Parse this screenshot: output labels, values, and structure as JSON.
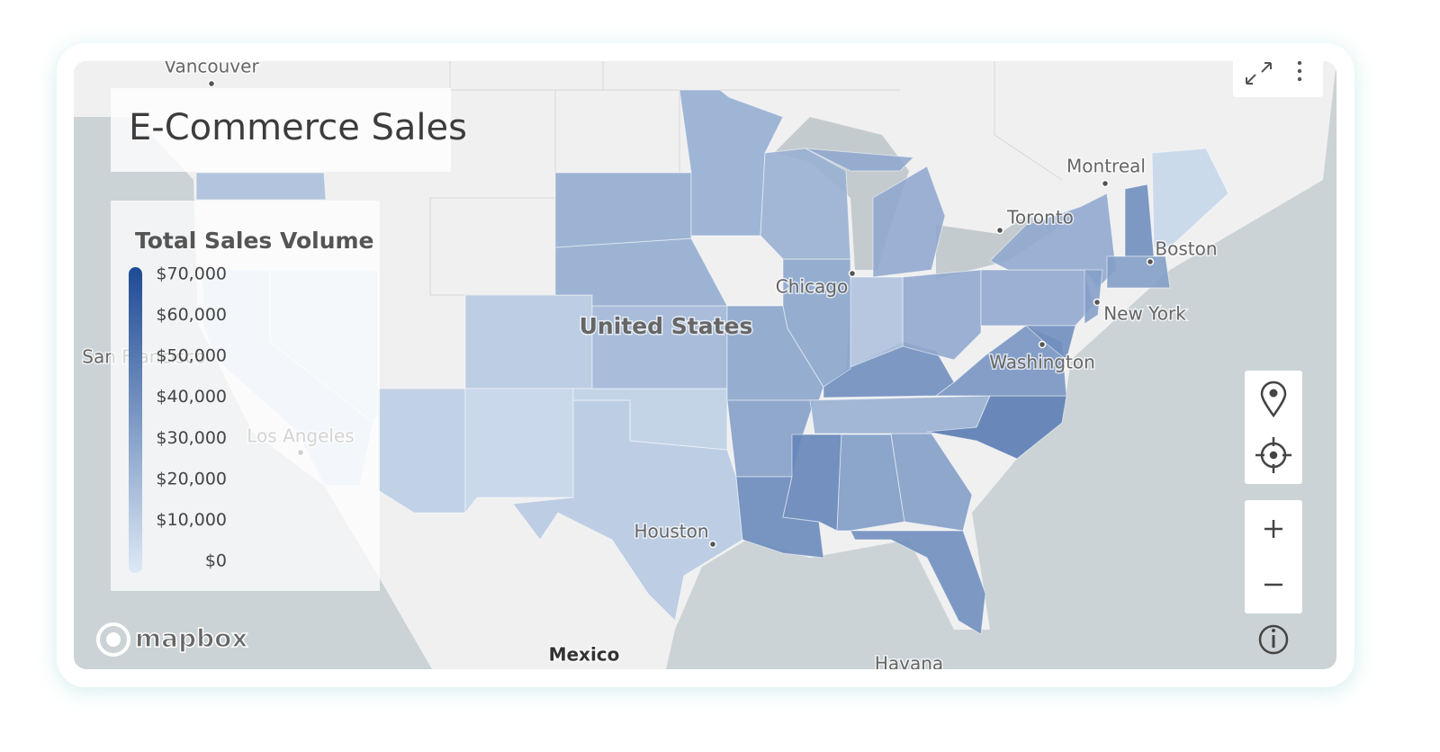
{
  "title": "E-Commerce Sales",
  "legend": {
    "title": "Total Sales Volume",
    "ticks": [
      {
        "value": 70000,
        "label": "$70,000"
      },
      {
        "value": 60000,
        "label": "$60,000"
      },
      {
        "value": 50000,
        "label": "$50,000"
      },
      {
        "value": 40000,
        "label": "$40,000"
      },
      {
        "value": 30000,
        "label": "$30,000"
      },
      {
        "value": 20000,
        "label": "$20,000"
      },
      {
        "value": 10000,
        "label": "$10,000"
      },
      {
        "value": 0,
        "label": "$0"
      }
    ]
  },
  "regions": [
    {
      "value": 18000
    },
    {
      "value": 4000
    },
    {
      "value": 3000
    },
    {
      "value": 12000
    },
    {
      "value": 14000
    },
    {
      "value": 9000
    },
    {
      "value": 14000
    },
    {
      "value": 11000
    },
    {
      "value": 22000
    },
    {
      "value": 27000
    },
    {
      "value": 27000
    },
    {
      "value": 26000
    },
    {
      "value": 30000
    },
    {
      "value": 32000
    },
    {
      "value": 42000
    },
    {
      "value": 44000
    },
    {
      "value": 34000
    },
    {
      "value": 33000
    },
    {
      "value": 40000
    },
    {
      "value": 25000
    },
    {
      "value": 48000
    },
    {
      "value": 40000
    },
    {
      "value": 37000
    },
    {
      "value": 28000
    },
    {
      "value": 17000
    },
    {
      "value": 30000
    },
    {
      "value": 25000
    },
    {
      "value": 28000
    },
    {
      "value": 28000
    },
    {
      "value": 28000
    },
    {
      "value": 40000
    },
    {
      "value": 33000
    },
    {
      "value": 8000
    },
    {
      "value": 32000
    },
    {
      "value": 40000
    }
  ],
  "places": [
    "Vancouver",
    "Montreal",
    "Toronto",
    "Boston",
    "New York",
    "Washington",
    "Chicago",
    "United States",
    "Houston",
    "Los Angeles",
    "San Francisco",
    "Mexico",
    "Havana"
  ],
  "attribution": "mapbox"
}
